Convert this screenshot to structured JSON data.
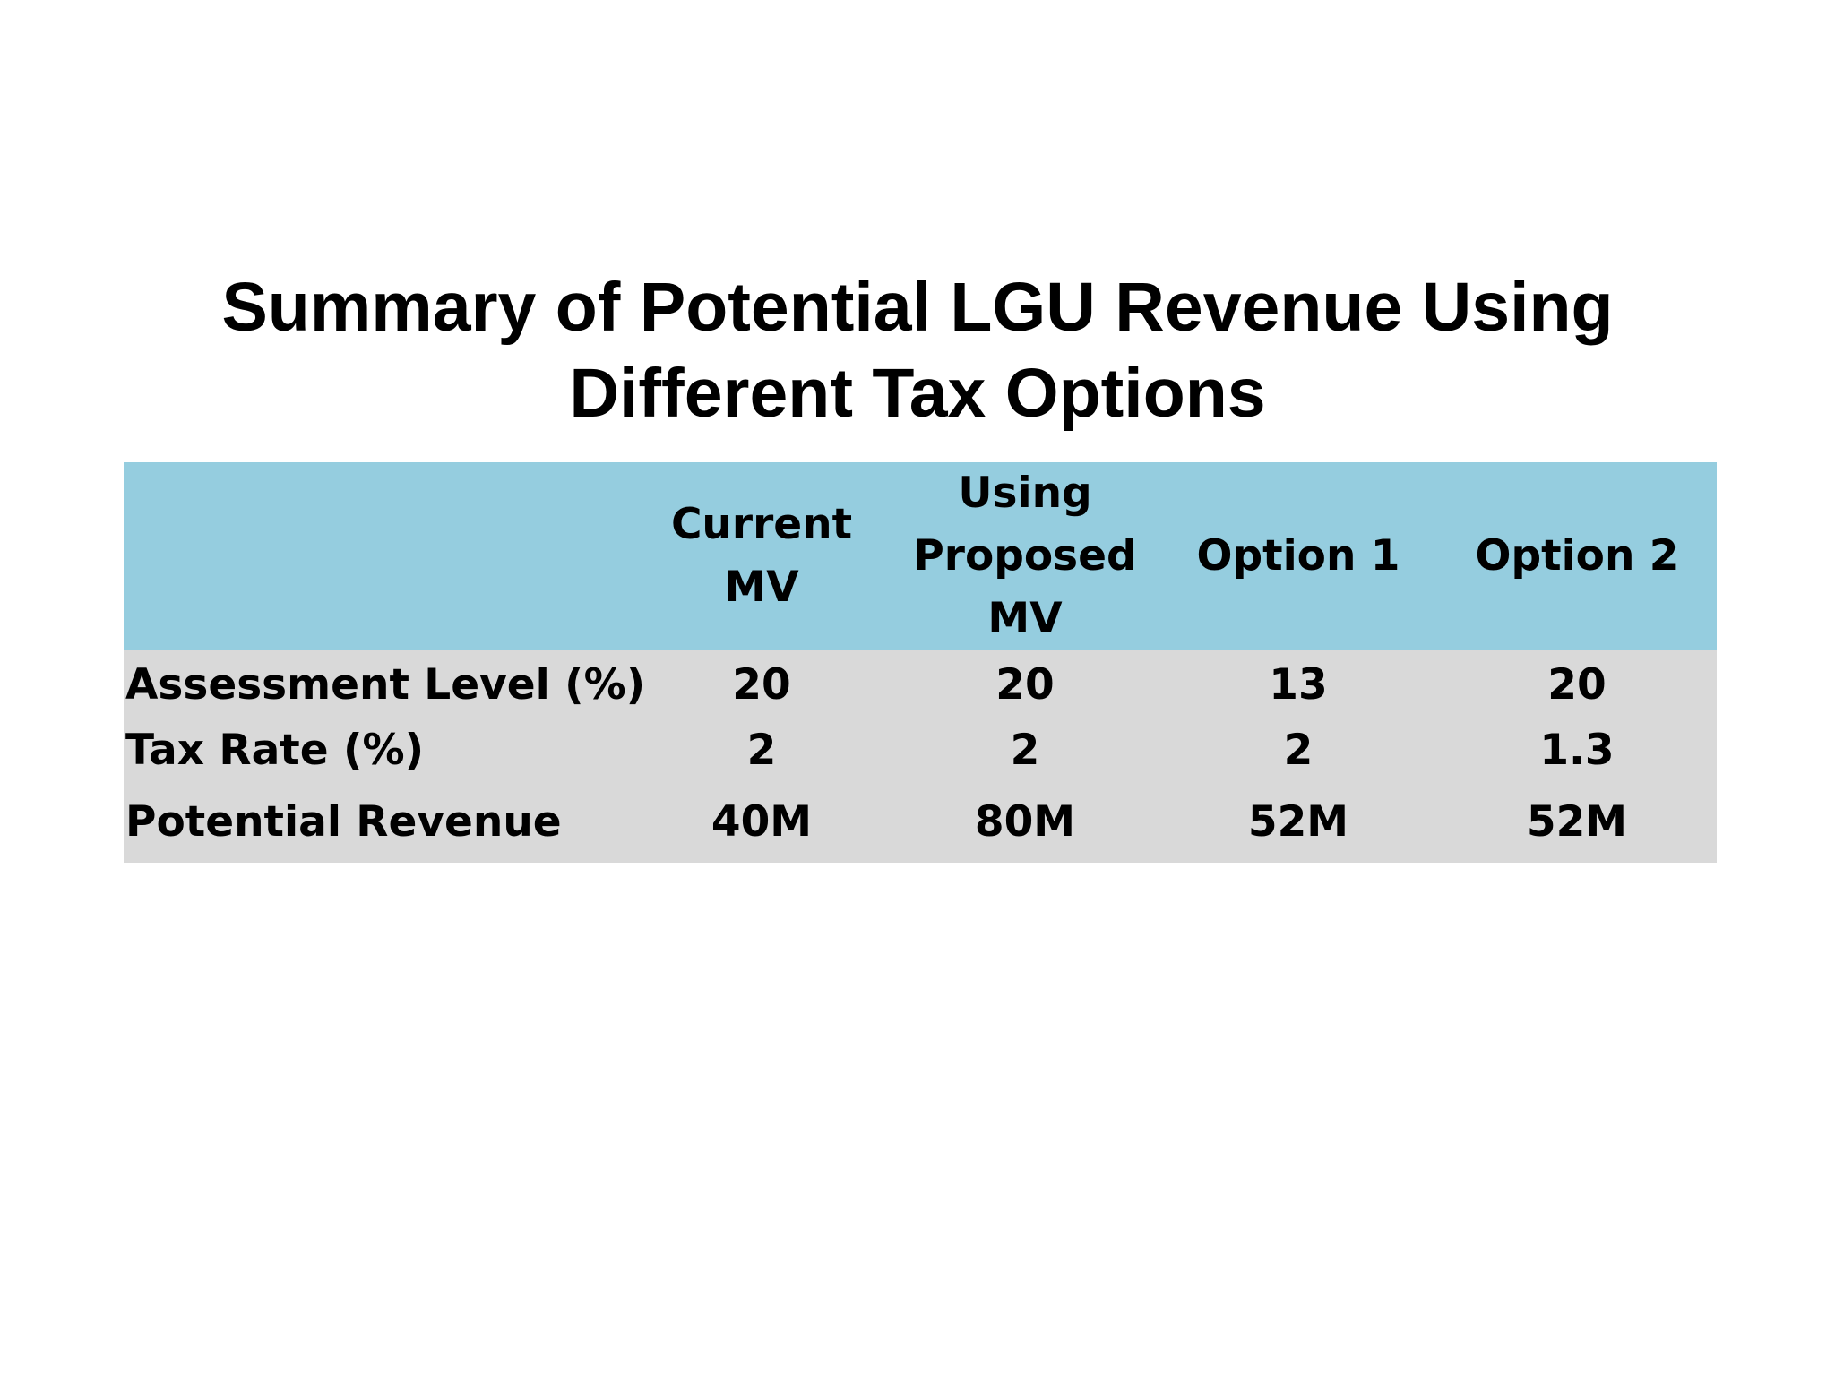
{
  "title": {
    "line1": "Summary of Potential LGU Revenue Using",
    "line2": "Different Tax Options"
  },
  "colors": {
    "header_bg": "#95cddf",
    "body_bg": "#d9d9d9",
    "text": "#000000"
  },
  "table": {
    "columns": [
      {
        "line1": "",
        "line2": ""
      },
      {
        "line1": "Current",
        "line2": "MV"
      },
      {
        "line1": "Using",
        "line2": "Proposed MV"
      },
      {
        "line1": "Option 1",
        "line2": ""
      },
      {
        "line1": "Option 2",
        "line2": ""
      }
    ],
    "rows": [
      {
        "label": "Assessment Level (%)",
        "values": [
          "20",
          "20",
          "13",
          "20"
        ]
      },
      {
        "label": "Tax Rate (%)",
        "values": [
          "2",
          "2",
          "2",
          "1.3"
        ]
      },
      {
        "label": "Potential Revenue",
        "values": [
          "40M",
          "80M",
          "52M",
          "52M"
        ]
      }
    ]
  }
}
